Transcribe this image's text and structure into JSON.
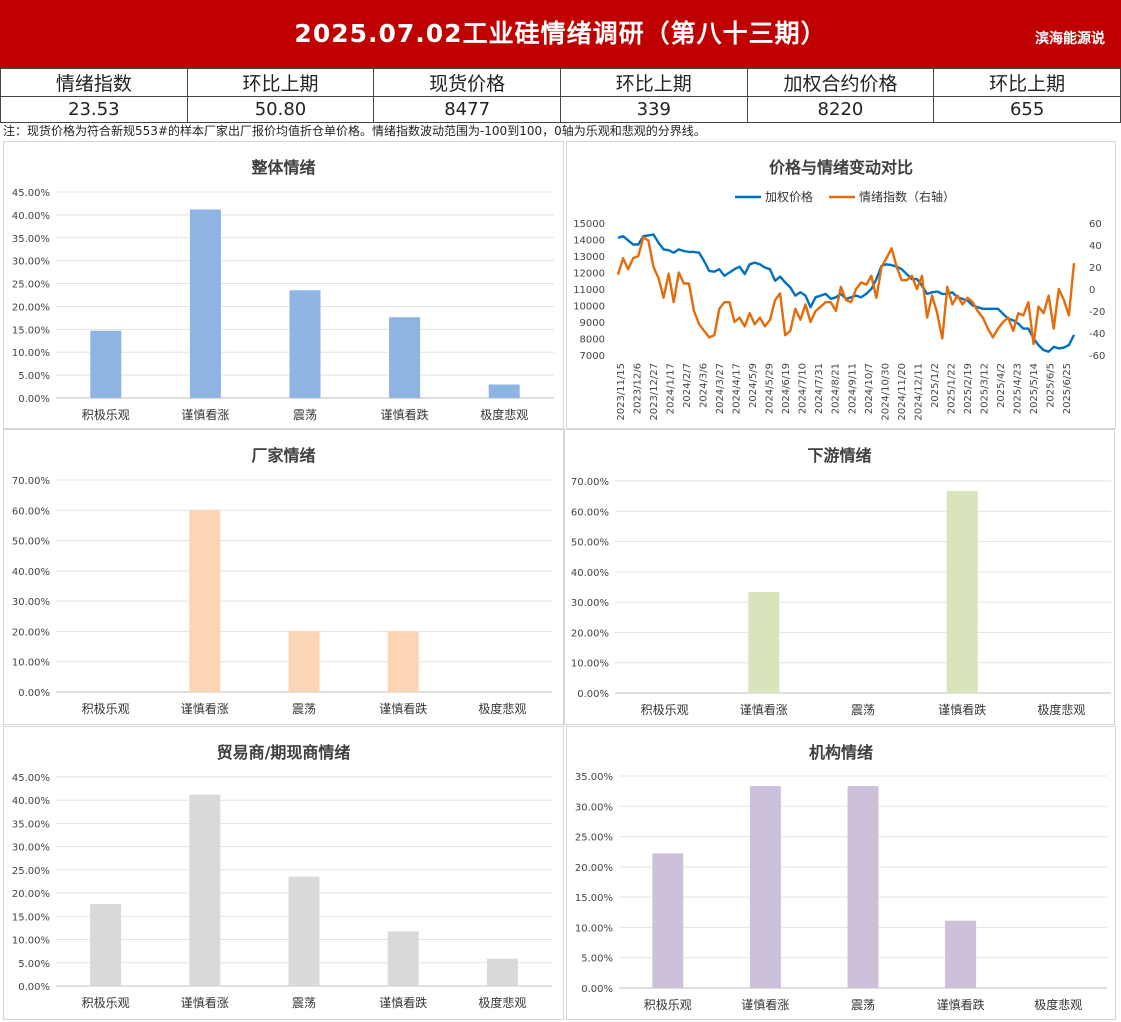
{
  "header": {
    "title": "2025.07.02工业硅情绪调研（第八十三期）",
    "brand": "滨海能源说"
  },
  "summary": {
    "headers": [
      "情绪指数",
      "环比上期",
      "现货价格",
      "环比上期",
      "加权合约价格",
      "环比上期"
    ],
    "values": [
      "23.53",
      "50.80",
      "8477",
      "339",
      "8220",
      "655"
    ]
  },
  "note": "注：现货价格为符合新规553#的样本厂家出厂报价均值折仓单价格。情绪指数波动范围为-100到100，0轴为乐观和悲观的分界线。",
  "colors": {
    "overall": "#8db4e2",
    "factory": "#fcd5b4",
    "downstream": "#d8e4bc",
    "trader": "#d9d9d9",
    "institution": "#ccc0da",
    "price_line": "#0070c0",
    "index_line": "#e46c0a"
  },
  "chart_data": [
    {
      "id": "overall",
      "type": "bar",
      "title": "整体情绪",
      "categories": [
        "积极乐观",
        "谨慎看涨",
        "震荡",
        "谨慎看跌",
        "极度悲观"
      ],
      "values": [
        14.71,
        41.18,
        23.53,
        17.65,
        2.94
      ],
      "ylim": [
        0,
        45
      ],
      "yticks": [
        "0.00%",
        "5.00%",
        "10.00%",
        "15.00%",
        "20.00%",
        "25.00%",
        "30.00%",
        "35.00%",
        "40.00%",
        "45.00%"
      ],
      "grid": true
    },
    {
      "id": "price_vs_sentiment",
      "type": "line",
      "title": "价格与情绪变动对比",
      "legend_position": "top",
      "x_tick_labels": [
        "2023/11/15",
        "2023/12/6",
        "2023/12/27",
        "2024/1/17",
        "2024/2/7",
        "2024/3/6",
        "2024/3/27",
        "2024/4/17",
        "2024/5/9",
        "2024/5/29",
        "2024/6/19",
        "2024/7/10",
        "2024/7/31",
        "2024/8/21",
        "2024/9/11",
        "2024/10/7",
        "2024/10/30",
        "2024/11/20",
        "2024/12/11",
        "2025/1/2",
        "2025/1/22",
        "2025/2/19",
        "2025/3/12",
        "2025/4/2",
        "2025/4/23",
        "2025/5/14",
        "2025/6/5",
        "2025/6/25"
      ],
      "ylim_left": [
        7000,
        15000
      ],
      "ylim_right": [
        -60,
        60
      ],
      "left_ticks": [
        "7000",
        "8000",
        "9000",
        "10000",
        "11000",
        "12000",
        "13000",
        "14000",
        "15000"
      ],
      "right_ticks": [
        "-60",
        "-40",
        "-20",
        "0",
        "20",
        "40",
        "60"
      ],
      "series": [
        {
          "name": "加权价格",
          "axis": "left",
          "values": [
            14100,
            14200,
            13950,
            13700,
            13700,
            14200,
            14250,
            14300,
            13800,
            13400,
            13350,
            13200,
            13400,
            13300,
            13250,
            13250,
            13200,
            12700,
            12100,
            12050,
            12200,
            11800,
            12000,
            12200,
            12350,
            11900,
            12500,
            12600,
            12500,
            12300,
            12200,
            11500,
            11750,
            11400,
            11100,
            10600,
            10800,
            10600,
            9900,
            10500,
            10600,
            10700,
            10400,
            10500,
            10700,
            10400,
            10500,
            10600,
            10500,
            10700,
            11000,
            11600,
            12400,
            12500,
            12450,
            12350,
            12200,
            11900,
            11600,
            11600,
            11200,
            10700,
            10800,
            10850,
            10700,
            10700,
            10800,
            10500,
            10400,
            10300,
            10000,
            9900,
            9800,
            9800,
            9800,
            9800,
            9500,
            9200,
            9100,
            8900,
            8600,
            8600,
            8000,
            7600,
            7300,
            7200,
            7500,
            7400,
            7450,
            7600,
            8220
          ]
        },
        {
          "name": "情绪指数（右轴）",
          "axis": "right",
          "values": [
            13,
            28,
            18,
            28,
            30,
            47,
            44,
            20,
            10,
            -8,
            14,
            -12,
            15,
            5,
            5,
            -20,
            -32,
            -38,
            -44,
            -42,
            -18,
            -12,
            -12,
            -30,
            -26,
            -34,
            -22,
            -32,
            -26,
            -34,
            -28,
            -10,
            -4,
            -42,
            -38,
            -18,
            -28,
            -14,
            -30,
            -20,
            -16,
            -12,
            -12,
            -20,
            2,
            -10,
            -12,
            0,
            6,
            4,
            12,
            -8,
            20,
            28,
            37,
            20,
            8,
            8,
            12,
            0,
            12,
            -26,
            -6,
            -22,
            -45,
            2,
            -14,
            -6,
            -14,
            -8,
            -12,
            -20,
            -26,
            -36,
            -44,
            -36,
            -30,
            -26,
            -38,
            -22,
            -24,
            -12,
            -50,
            -16,
            -22,
            -6,
            -36,
            0,
            -10,
            -24,
            23.53
          ]
        }
      ]
    },
    {
      "id": "factory",
      "type": "bar",
      "title": "厂家情绪",
      "categories": [
        "积极乐观",
        "谨慎看涨",
        "震荡",
        "谨慎看跌",
        "极度悲观"
      ],
      "values": [
        0,
        60,
        20,
        20,
        0
      ],
      "ylim": [
        0,
        70
      ],
      "yticks": [
        "0.00%",
        "10.00%",
        "20.00%",
        "30.00%",
        "40.00%",
        "50.00%",
        "60.00%",
        "70.00%"
      ],
      "grid": true
    },
    {
      "id": "downstream",
      "type": "bar",
      "title": "下游情绪",
      "categories": [
        "积极乐观",
        "谨慎看涨",
        "震荡",
        "谨慎看跌",
        "极度悲观"
      ],
      "values": [
        0,
        33.33,
        0,
        66.67,
        0
      ],
      "ylim": [
        0,
        70
      ],
      "yticks": [
        "0.00%",
        "10.00%",
        "20.00%",
        "30.00%",
        "40.00%",
        "50.00%",
        "60.00%",
        "70.00%"
      ],
      "grid": true
    },
    {
      "id": "trader",
      "type": "bar",
      "title": "贸易商/期现商情绪",
      "categories": [
        "积极乐观",
        "谨慎看涨",
        "震荡",
        "谨慎看跌",
        "极度悲观"
      ],
      "values": [
        17.65,
        41.18,
        23.53,
        11.76,
        5.88
      ],
      "ylim": [
        0,
        45
      ],
      "yticks": [
        "0.00%",
        "5.00%",
        "10.00%",
        "15.00%",
        "20.00%",
        "25.00%",
        "30.00%",
        "35.00%",
        "40.00%",
        "45.00%"
      ],
      "grid": true
    },
    {
      "id": "institution",
      "type": "bar",
      "title": "机构情绪",
      "categories": [
        "积极乐观",
        "谨慎看涨",
        "震荡",
        "谨慎看跌",
        "极度悲观"
      ],
      "values": [
        22.22,
        33.33,
        33.33,
        11.11,
        0
      ],
      "ylim": [
        0,
        35
      ],
      "yticks": [
        "0.00%",
        "5.00%",
        "10.00%",
        "15.00%",
        "20.00%",
        "25.00%",
        "30.00%",
        "35.00%"
      ],
      "grid": true
    }
  ]
}
